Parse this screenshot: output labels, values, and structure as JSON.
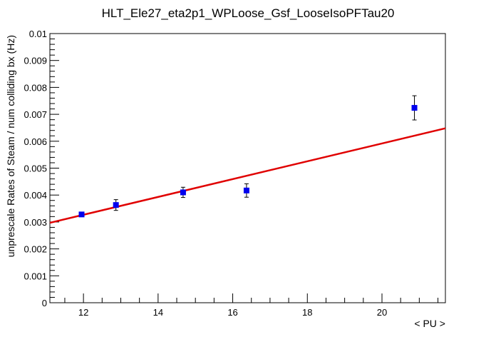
{
  "chart_data": {
    "type": "scatter",
    "title": "HLT_Ele27_eta2p1_WPLoose_Gsf_LooseIsoPFTau20",
    "xlabel": "< PU >",
    "ylabel": "unprescale Rates of Steam / num colliding bx (Hz)",
    "xlim": [
      11.1,
      21.7
    ],
    "ylim": [
      0,
      0.01
    ],
    "x_ticks": [
      12,
      14,
      16,
      18,
      20
    ],
    "x_tick_labels": [
      "12",
      "14",
      "16",
      "18",
      "20"
    ],
    "y_ticks": [
      0,
      0.001,
      0.002,
      0.003,
      0.004,
      0.005,
      0.006,
      0.007,
      0.008,
      0.009,
      0.01
    ],
    "y_tick_labels": [
      "0",
      "0.001",
      "0.002",
      "0.003",
      "0.004",
      "0.005",
      "0.006",
      "0.007",
      "0.008",
      "0.009",
      "0.01"
    ],
    "grid": false,
    "series": [
      {
        "color": "#0000ee",
        "points": [
          {
            "x": 11.95,
            "y": 0.00328,
            "err": 6e-05
          },
          {
            "x": 12.87,
            "y": 0.00363,
            "err": 0.0002
          },
          {
            "x": 14.67,
            "y": 0.0041,
            "err": 0.00019
          },
          {
            "x": 16.37,
            "y": 0.00417,
            "err": 0.00025
          },
          {
            "x": 20.87,
            "y": 0.00724,
            "err": 0.00045
          }
        ]
      }
    ],
    "fit": {
      "color": "#e00000",
      "from": [
        11.1,
        0.00297
      ],
      "to": [
        21.7,
        0.00648
      ]
    }
  }
}
